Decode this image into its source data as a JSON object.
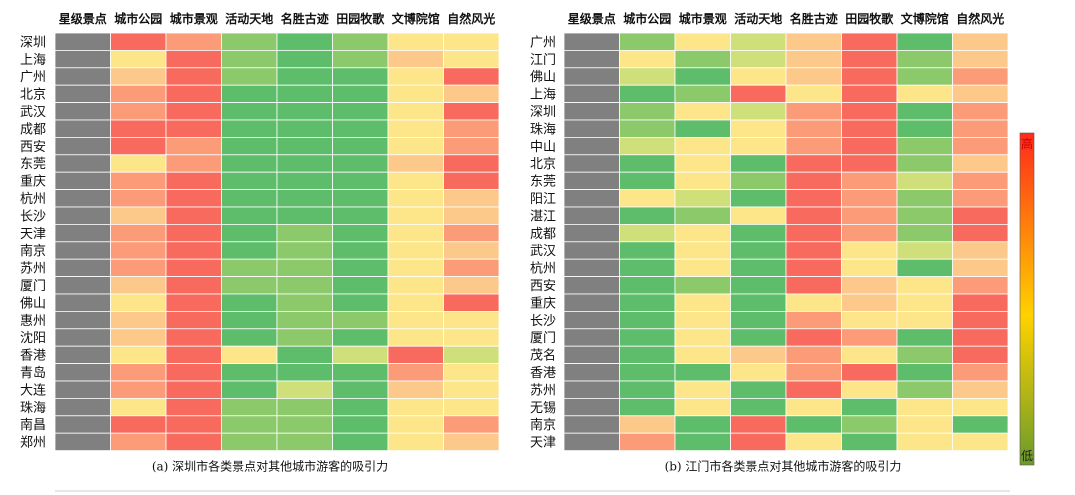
{
  "colors": {
    "high": "#ff3b2f",
    "mid": "#ffd400",
    "low": "#6b9a2b",
    "gray_column": "#808080",
    "grid_line": "#ffffff",
    "level_1": "#5ebd6b",
    "level_2": "#8cc96a",
    "level_3": "#cfe07a",
    "level_4": "#fde68a",
    "level_5": "#fcc98a",
    "level_6": "#fb9b78",
    "level_7": "#f86a5d"
  },
  "legend": {
    "high_label": "高",
    "low_label": "低"
  },
  "chart_data": [
    {
      "type": "heatmap",
      "title": "",
      "caption": "(a) 深圳市各类景点对其他城市游客的吸引力",
      "columns": [
        "星级景点",
        "城市公园",
        "城市景观",
        "活动天地",
        "名胜古迹",
        "田园牧歌",
        "文博院馆",
        "自然风光"
      ],
      "rows": [
        "深圳",
        "上海",
        "广州",
        "北京",
        "武汉",
        "成都",
        "西安",
        "东莞",
        "重庆",
        "杭州",
        "长沙",
        "天津",
        "南京",
        "苏州",
        "厦门",
        "佛山",
        "惠州",
        "沈阳",
        "香港",
        "青岛",
        "大连",
        "珠海",
        "南昌",
        "郑州"
      ],
      "scale": "1 = 低 (green) … 7 = 高 (red); 0 = gray column (no value shown)",
      "values": [
        [
          0,
          7,
          6,
          2,
          1,
          2,
          4,
          4
        ],
        [
          0,
          4,
          7,
          2,
          1,
          2,
          5,
          4
        ],
        [
          0,
          5,
          7,
          2,
          1,
          1,
          4,
          7
        ],
        [
          0,
          6,
          7,
          1,
          1,
          1,
          4,
          5
        ],
        [
          0,
          6,
          7,
          1,
          1,
          1,
          4,
          7
        ],
        [
          0,
          7,
          7,
          1,
          1,
          1,
          4,
          6
        ],
        [
          0,
          7,
          6,
          1,
          1,
          1,
          4,
          6
        ],
        [
          0,
          4,
          6,
          1,
          1,
          1,
          5,
          7
        ],
        [
          0,
          6,
          7,
          1,
          1,
          1,
          4,
          7
        ],
        [
          0,
          6,
          7,
          1,
          1,
          1,
          4,
          5
        ],
        [
          0,
          5,
          7,
          1,
          1,
          1,
          4,
          5
        ],
        [
          0,
          6,
          7,
          1,
          2,
          1,
          4,
          6
        ],
        [
          0,
          6,
          7,
          1,
          2,
          1,
          4,
          5
        ],
        [
          0,
          6,
          7,
          2,
          2,
          1,
          4,
          6
        ],
        [
          0,
          5,
          7,
          2,
          2,
          1,
          4,
          5
        ],
        [
          0,
          4,
          7,
          1,
          2,
          1,
          4,
          7
        ],
        [
          0,
          5,
          7,
          1,
          2,
          2,
          4,
          4
        ],
        [
          0,
          5,
          7,
          1,
          2,
          1,
          4,
          4
        ],
        [
          0,
          4,
          7,
          4,
          1,
          3,
          7,
          3
        ],
        [
          0,
          6,
          7,
          1,
          1,
          1,
          6,
          4
        ],
        [
          0,
          6,
          7,
          1,
          3,
          1,
          5,
          4
        ],
        [
          0,
          4,
          7,
          2,
          2,
          1,
          4,
          4
        ],
        [
          0,
          7,
          7,
          2,
          2,
          1,
          4,
          6
        ],
        [
          0,
          6,
          7,
          2,
          2,
          1,
          4,
          5
        ]
      ]
    },
    {
      "type": "heatmap",
      "title": "",
      "caption": "(b) 江门市各类景点对其他城市游客的吸引力",
      "columns": [
        "星级景点",
        "城市公园",
        "城市景观",
        "活动天地",
        "名胜古迹",
        "田园牧歌",
        "文博院馆",
        "自然风光"
      ],
      "rows": [
        "广州",
        "江门",
        "佛山",
        "上海",
        "深圳",
        "珠海",
        "中山",
        "北京",
        "东莞",
        "阳江",
        "湛江",
        "成都",
        "武汉",
        "杭州",
        "西安",
        "重庆",
        "长沙",
        "厦门",
        "茂名",
        "香港",
        "苏州",
        "无锡",
        "南京",
        "天津"
      ],
      "scale": "1 = 低 (green) … 7 = 高 (red); 0 = gray column (no value shown)",
      "values": [
        [
          0,
          2,
          4,
          3,
          5,
          7,
          1,
          5
        ],
        [
          0,
          4,
          2,
          3,
          5,
          7,
          2,
          5
        ],
        [
          0,
          3,
          1,
          4,
          5,
          7,
          2,
          6
        ],
        [
          0,
          1,
          2,
          7,
          4,
          7,
          4,
          5
        ],
        [
          0,
          2,
          4,
          3,
          6,
          7,
          1,
          6
        ],
        [
          0,
          2,
          1,
          4,
          6,
          7,
          1,
          6
        ],
        [
          0,
          3,
          4,
          4,
          6,
          7,
          2,
          6
        ],
        [
          0,
          1,
          4,
          1,
          7,
          7,
          2,
          5
        ],
        [
          0,
          1,
          4,
          2,
          7,
          6,
          3,
          6
        ],
        [
          0,
          4,
          3,
          1,
          7,
          6,
          2,
          6
        ],
        [
          0,
          1,
          2,
          4,
          7,
          6,
          2,
          7
        ],
        [
          0,
          3,
          4,
          1,
          7,
          6,
          2,
          7
        ],
        [
          0,
          1,
          4,
          1,
          7,
          4,
          3,
          5
        ],
        [
          0,
          1,
          4,
          1,
          7,
          4,
          1,
          5
        ],
        [
          0,
          1,
          2,
          1,
          7,
          5,
          4,
          6
        ],
        [
          0,
          1,
          4,
          1,
          4,
          5,
          4,
          7
        ],
        [
          0,
          1,
          4,
          1,
          6,
          4,
          4,
          7
        ],
        [
          0,
          1,
          4,
          1,
          7,
          6,
          1,
          7
        ],
        [
          0,
          1,
          4,
          5,
          6,
          4,
          2,
          7
        ],
        [
          0,
          1,
          1,
          4,
          6,
          7,
          1,
          6
        ],
        [
          0,
          1,
          4,
          1,
          7,
          4,
          2,
          5
        ],
        [
          0,
          1,
          4,
          1,
          4,
          1,
          4,
          4
        ],
        [
          0,
          5,
          1,
          7,
          1,
          2,
          4,
          1
        ],
        [
          0,
          6,
          1,
          7,
          4,
          1,
          4,
          4
        ]
      ]
    }
  ]
}
